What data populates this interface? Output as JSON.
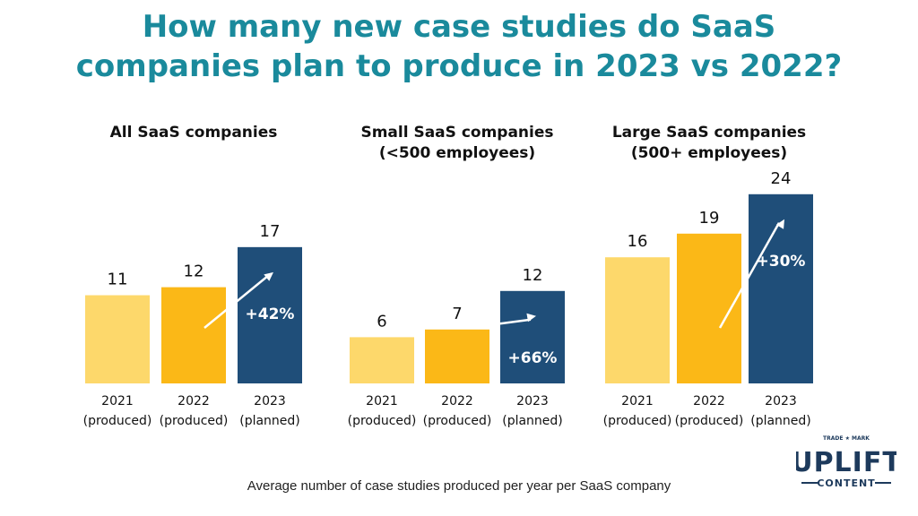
{
  "title_line1": "How many new case studies do SaaS",
  "title_line2": "companies plan to produce in 2023 vs 2022?",
  "caption": "Average number of case studies produced per year per SaaS company",
  "logo": {
    "top_small": "TRADE ★ MARK",
    "main": "UPLIFT",
    "sub": "CONTENT"
  },
  "colors": {
    "title": "#1a8a9c",
    "bar_2021": "#fdd86b",
    "bar_2022": "#fbb817",
    "bar_2023": "#1f4e79",
    "arrow": "#ffffff",
    "logo": "#1d3a5c"
  },
  "chart_data": [
    {
      "type": "bar",
      "title": [
        "All SaaS companies"
      ],
      "categories": [
        [
          "2021",
          "(produced)"
        ],
        [
          "2022",
          "(produced)"
        ],
        [
          "2023",
          "(planned)"
        ]
      ],
      "values": [
        11,
        12,
        17
      ],
      "labels": [
        "11",
        "12",
        "17"
      ],
      "growth_label": "+42%"
    },
    {
      "type": "bar",
      "title": [
        "Small SaaS companies",
        "(<500 employees)"
      ],
      "categories": [
        [
          "2021",
          "(produced)"
        ],
        [
          "2022",
          "(produced)"
        ],
        [
          "2023",
          "(planned)"
        ]
      ],
      "values": [
        6,
        7,
        12
      ],
      "labels": [
        "6",
        "7",
        "12"
      ],
      "growth_label": "+66%"
    },
    {
      "type": "bar",
      "title": [
        "Large SaaS companies",
        "(500+ employees)"
      ],
      "categories": [
        [
          "2021",
          "(produced)"
        ],
        [
          "2022",
          "(produced)"
        ],
        [
          "2023",
          "(planned)"
        ]
      ],
      "values": [
        16,
        19,
        24
      ],
      "labels": [
        "16",
        "19",
        "24"
      ],
      "growth_label": "+30%"
    }
  ]
}
